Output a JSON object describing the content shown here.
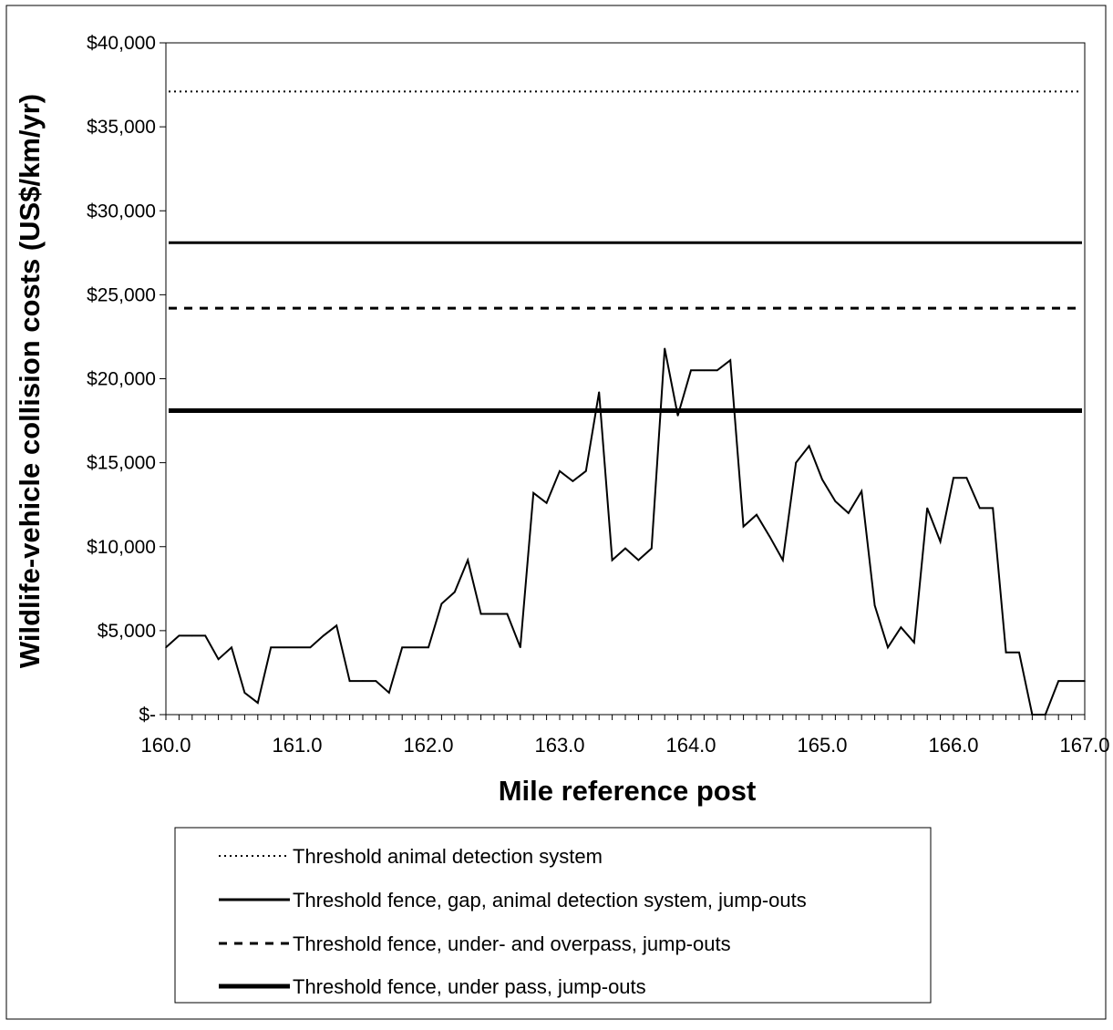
{
  "chart_data": {
    "type": "line",
    "title": "",
    "xlabel": "Mile reference post",
    "ylabel": "Wildlife-vehicle collision costs (US$/km/yr)",
    "xlim": [
      160.0,
      167.0
    ],
    "ylim": [
      0,
      40000
    ],
    "x_ticks": [
      160.0,
      161.0,
      162.0,
      163.0,
      164.0,
      165.0,
      166.0,
      167.0
    ],
    "x_tick_labels": [
      "160.0",
      "161.0",
      "162.0",
      "163.0",
      "164.0",
      "165.0",
      "166.0",
      "167.0"
    ],
    "y_ticks": [
      0,
      5000,
      10000,
      15000,
      20000,
      25000,
      30000,
      35000,
      40000
    ],
    "y_tick_labels": [
      "$-",
      "$5,000",
      "$10,000",
      "$15,000",
      "$20,000",
      "$25,000",
      "$30,000",
      "$35,000",
      "$40,000"
    ],
    "grid": false,
    "legend_position": "bottom",
    "series": [
      {
        "x": [
          160.0,
          160.1,
          160.2,
          160.3,
          160.4,
          160.5,
          160.6,
          160.7,
          160.8,
          160.9,
          161.0,
          161.1,
          161.2,
          161.3,
          161.4,
          161.5,
          161.6,
          161.7,
          161.8,
          161.9,
          162.0,
          162.1,
          162.2,
          162.3,
          162.4,
          162.5,
          162.6,
          162.7,
          162.8,
          162.9,
          163.0,
          163.1,
          163.2,
          163.3,
          163.4,
          163.5,
          163.6,
          163.7,
          163.8,
          163.9,
          164.0,
          164.1,
          164.2,
          164.3,
          164.4,
          164.5,
          164.6,
          164.7,
          164.8,
          164.9,
          165.0,
          165.1,
          165.2,
          165.3,
          165.4,
          165.5,
          165.6,
          165.7,
          165.8,
          165.9,
          166.0,
          166.1,
          166.2,
          166.3,
          166.4,
          166.5,
          166.6,
          166.7,
          166.8,
          166.9,
          167.0
        ],
        "values": [
          4000,
          4700,
          4700,
          4700,
          3300,
          4000,
          1300,
          700,
          4000,
          4000,
          4000,
          4000,
          4700,
          5300,
          2000,
          2000,
          2000,
          1300,
          4000,
          4000,
          4000,
          6600,
          7300,
          9200,
          6000,
          6000,
          6000,
          4000,
          13200,
          12600,
          14500,
          13900,
          14500,
          19200,
          9200,
          9900,
          9200,
          9900,
          21800,
          17800,
          20500,
          20500,
          20500,
          21100,
          11200,
          11900,
          10600,
          9200,
          15000,
          16000,
          14000,
          12700,
          12000,
          13300,
          6500,
          4000,
          5200,
          4300,
          12300,
          10300,
          14100,
          14100,
          12300,
          12300,
          3700,
          3700,
          0,
          0,
          2000,
          2000,
          2000
        ],
        "color": "#000000"
      },
      {
        "name": "Threshold animal detection system",
        "values": [
          37100
        ],
        "style": "dotted",
        "color": "#000000"
      },
      {
        "name": "Threshold fence, gap, animal detection system, jump-outs",
        "values": [
          28100
        ],
        "style": "solid",
        "color": "#000000"
      },
      {
        "name": "Threshold fence, under- and overpass, jump-outs",
        "values": [
          24200
        ],
        "style": "dashed",
        "color": "#000000"
      },
      {
        "name": "Threshold fence, under pass, jump-outs",
        "values": [
          18100
        ],
        "style": "thick-solid",
        "color": "#000000"
      }
    ]
  }
}
